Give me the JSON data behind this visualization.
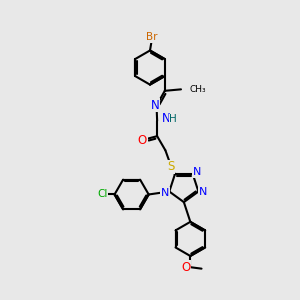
{
  "background_color": "#e8e8e8",
  "atom_colors": {
    "C": "#000000",
    "N": "#0000ff",
    "O": "#ff0000",
    "S": "#ccaa00",
    "Br": "#cc6600",
    "Cl": "#00aa00",
    "H": "#006666"
  },
  "bg": "#e8e8e8",
  "ring_lw": 1.5,
  "bond_lw": 1.5
}
